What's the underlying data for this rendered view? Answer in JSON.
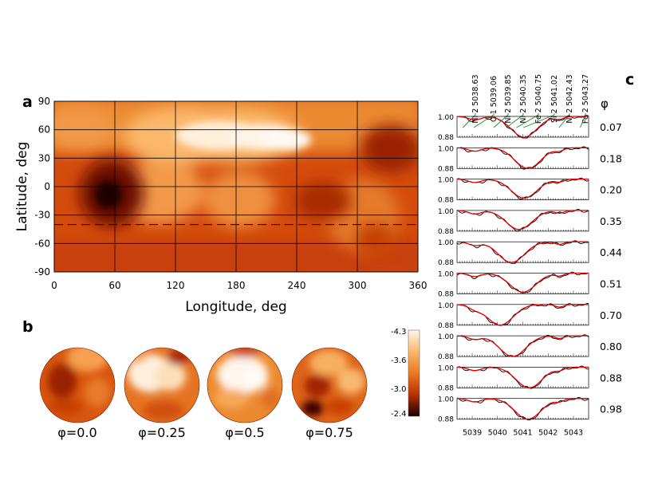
{
  "panel_labels": {
    "a": "a",
    "b": "b",
    "c": "c"
  },
  "chart_data": [
    {
      "type": "heatmap",
      "panel": "a",
      "title": "",
      "xlabel": "Longitude, deg",
      "ylabel": "Latitude, deg",
      "xlim": [
        0,
        360
      ],
      "ylim": [
        -90,
        90
      ],
      "xticks": [
        "0",
        "60",
        "120",
        "180",
        "240",
        "300",
        "360"
      ],
      "yticks": [
        "90",
        "60",
        "30",
        "0",
        "-30",
        "-60",
        "-90"
      ],
      "grid": true,
      "dashed_latitude": -40,
      "features": [
        {
          "name": "dark-spot",
          "lon": 50,
          "lat": -10,
          "value": -2.4
        },
        {
          "name": "dark-spot",
          "lon": 335,
          "lat": 35,
          "value": -2.8
        },
        {
          "name": "dark-spot",
          "lon": 255,
          "lat": -15,
          "value": -2.9
        },
        {
          "name": "bright-region",
          "lon": 150,
          "lat": 45,
          "value": -4.3
        },
        {
          "name": "bright-region",
          "lon": 200,
          "lat": 45,
          "value": -4.1
        },
        {
          "name": "bright-region",
          "lon": 160,
          "lat": 0,
          "value": -3.8
        }
      ]
    },
    {
      "type": "other",
      "panel": "b",
      "description_kind": "stellar-surface-projections",
      "phases": [
        {
          "label": "φ=0.0",
          "phase": 0.0
        },
        {
          "label": "φ=0.25",
          "phase": 0.25
        },
        {
          "label": "φ=0.5",
          "phase": 0.5
        },
        {
          "label": "φ=0.75",
          "phase": 0.75
        }
      ],
      "colorbar": {
        "ticks": [
          "-4.3",
          "-3.6",
          "-3.0",
          "-2.4"
        ],
        "min": -4.3,
        "max": -2.4
      }
    },
    {
      "type": "line",
      "panel": "c",
      "x_ticks": [
        "5039",
        "5040",
        "5041",
        "5042",
        "5043"
      ],
      "xlim": [
        5038.4,
        5043.6
      ],
      "ylim": [
        0.88,
        1.0
      ],
      "y_tick_labels": [
        "1.00",
        "0.88"
      ],
      "phase_header": "φ",
      "line_ids": [
        {
          "label": "Ni 2 5038.63",
          "wl": 5038.63
        },
        {
          "label": "C 1 5039.06",
          "wl": 5039.06
        },
        {
          "label": "Ni 2 5039.85",
          "wl": 5039.85
        },
        {
          "label": "Ni 2 5040.35",
          "wl": 5040.35
        },
        {
          "label": "Fe 2 5040.75",
          "wl": 5040.75
        },
        {
          "label": "Si 2 5041.02",
          "wl": 5041.02
        },
        {
          "label": "Ni 2 5042.43",
          "wl": 5042.43
        },
        {
          "label": "Fe 2 5043.27",
          "wl": 5043.27
        }
      ],
      "series": [
        {
          "name": "observed",
          "color": "#000000"
        },
        {
          "name": "model",
          "color": "#e00000"
        }
      ],
      "phases": [
        "0.07",
        "0.18",
        "0.20",
        "0.35",
        "0.44",
        "0.51",
        "0.70",
        "0.80",
        "0.88",
        "0.98"
      ],
      "profile_center": [
        5041.05,
        5041.2,
        5041.05,
        5040.85,
        5040.55,
        5041.0,
        5040.1,
        5040.6,
        5041.25,
        5041.2
      ],
      "profile_depth": [
        0.12,
        0.12,
        0.11,
        0.11,
        0.12,
        0.11,
        0.12,
        0.12,
        0.12,
        0.12
      ]
    }
  ],
  "colors": {
    "dark": "#1a0000",
    "mid": "#c83200",
    "bright": "#fff6ec",
    "grid": "#000000",
    "model": "#e00000"
  }
}
